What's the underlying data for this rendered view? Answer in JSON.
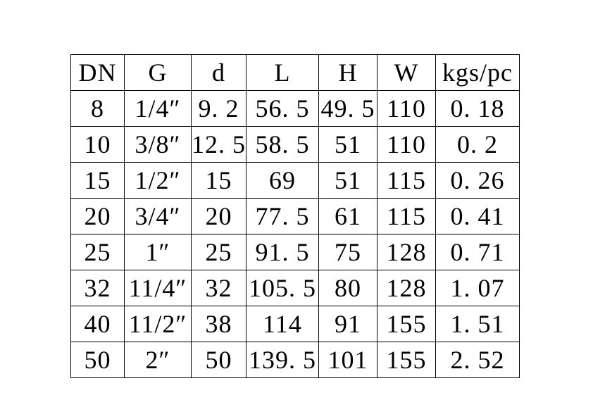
{
  "page": {
    "background_color": "#ffffff"
  },
  "table": {
    "title": "dimension-specification-table",
    "border_color": "#000000",
    "text_color": "#000000",
    "headers": [
      "DN",
      "G",
      "d",
      "L",
      "H",
      "W",
      "kgs/pc"
    ],
    "rows": [
      [
        "8",
        "1/4″",
        "9. 2",
        "56. 5",
        "49. 5",
        "110",
        "0. 18"
      ],
      [
        "10",
        "3/8″",
        "12. 5",
        "58. 5",
        "51",
        "110",
        "0. 2"
      ],
      [
        "15",
        "1/2″",
        "15",
        "69",
        "51",
        "115",
        "0. 26"
      ],
      [
        "20",
        "3/4″",
        "20",
        "77. 5",
        "61",
        "115",
        "0. 41"
      ],
      [
        "25",
        "1″",
        "25",
        "91. 5",
        "75",
        "128",
        "0. 71"
      ],
      [
        "32",
        "11/4″",
        "32",
        "105. 5",
        "80",
        "128",
        "1. 07"
      ],
      [
        "40",
        "11/2″",
        "38",
        "114",
        "91",
        "155",
        "1. 51"
      ],
      [
        "50",
        "2″",
        "50",
        "139. 5",
        "101",
        "155",
        "2. 52"
      ]
    ]
  }
}
